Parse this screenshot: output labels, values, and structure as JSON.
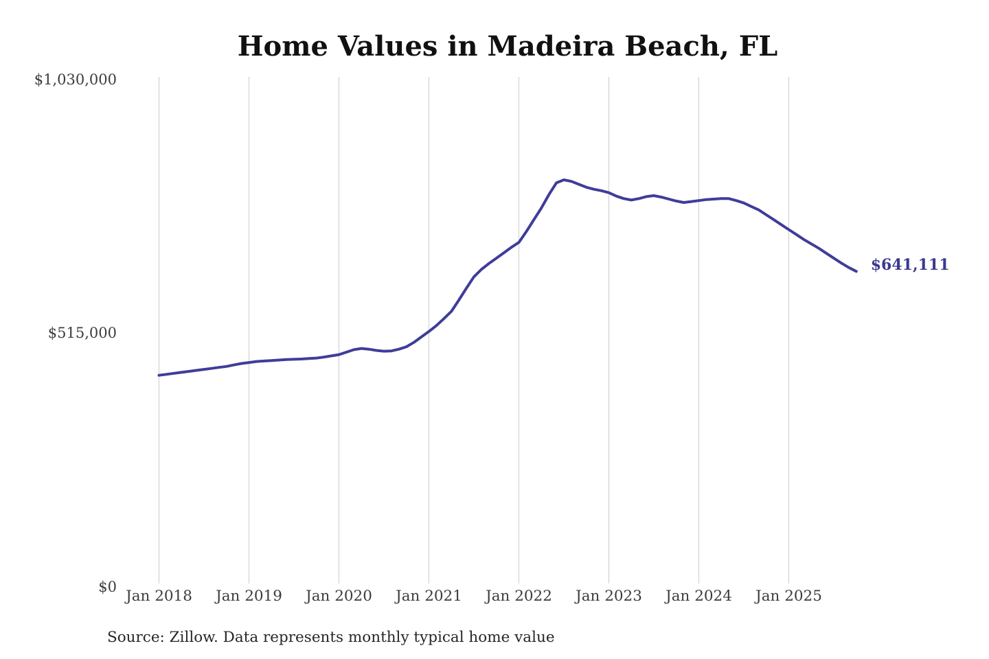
{
  "chart_data": {
    "type": "line",
    "title": "Home Values in Madeira Beach, FL",
    "source": "Source: Zillow. Data represents monthly typical home value",
    "end_label": "$641,111",
    "latest_value": 641111,
    "x_start": "2018-01",
    "x_end": "2025-10",
    "x_frequency": "monthly",
    "xtick_labels": [
      "Jan 2018",
      "Jan 2019",
      "Jan 2020",
      "Jan 2021",
      "Jan 2022",
      "Jan 2023",
      "Jan 2024",
      "Jan 2025"
    ],
    "ytick_values": [
      0,
      515000,
      1030000
    ],
    "ytick_labels": [
      "$0",
      "$515,000",
      "$1,030,000"
    ],
    "ylim": [
      0,
      1030000
    ],
    "grid": "vertical",
    "legend": "none",
    "line_color": "#3f3d99",
    "end_label_color": "#3b3990",
    "grid_color": "#cccccc",
    "axis_text_color": "#3c3c3c",
    "title_color": "#111111",
    "source_color": "#262626",
    "values": [
      430000,
      432000,
      434000,
      436000,
      438000,
      440000,
      442000,
      444000,
      446000,
      448000,
      451000,
      454000,
      456000,
      458000,
      459000,
      460000,
      461000,
      462000,
      462500,
      463000,
      464000,
      465000,
      467000,
      469500,
      472000,
      477000,
      482000,
      484500,
      483000,
      480500,
      479000,
      479500,
      483000,
      488000,
      497000,
      508000,
      519000,
      531000,
      545000,
      560000,
      583000,
      607000,
      630000,
      645000,
      657000,
      668000,
      679000,
      690000,
      700000,
      722000,
      746000,
      770000,
      797000,
      821000,
      827000,
      824000,
      818000,
      812000,
      808000,
      805000,
      801000,
      794000,
      789000,
      786000,
      789000,
      793000,
      795000,
      792000,
      788000,
      784000,
      781000,
      783000,
      785000,
      787000,
      788000,
      789000,
      789000,
      785000,
      780000,
      773000,
      766000,
      756000,
      746000,
      736000,
      726000,
      716000,
      706000,
      697000,
      688000,
      678000,
      668000,
      658000,
      649000,
      641111
    ]
  }
}
